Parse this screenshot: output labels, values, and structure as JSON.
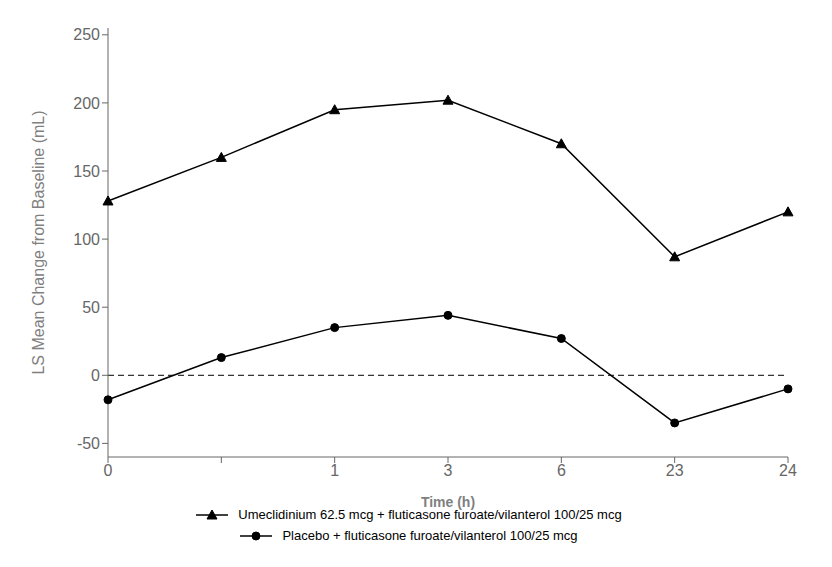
{
  "chart_data": {
    "type": "line",
    "xlabel": "Time (h)",
    "ylabel": "LS Mean Change from Baseline (mL)",
    "categories": [
      "0",
      null,
      "1",
      "3",
      "6",
      "23",
      "24"
    ],
    "series": [
      {
        "name": "Umeclidinium 62.5 mcg + fluticasone furoate/vilanterol 100/25 mcg",
        "color": "#000000",
        "marker": "triangle",
        "values": [
          128,
          160,
          195,
          202,
          170,
          87,
          120
        ]
      },
      {
        "name": "Placebo + fluticasone furoate/vilanterol 100/25 mcg",
        "color": "#000000",
        "marker": "circle",
        "values": [
          -18,
          13,
          35,
          44,
          27,
          -35,
          -10
        ]
      }
    ],
    "ylim": [
      -60,
      255
    ],
    "yticks": [
      -50,
      0,
      50,
      100,
      150,
      200,
      250
    ],
    "reference_line": {
      "y": 0,
      "line_style": "dashed"
    },
    "grid": false,
    "legend": "bottom"
  }
}
